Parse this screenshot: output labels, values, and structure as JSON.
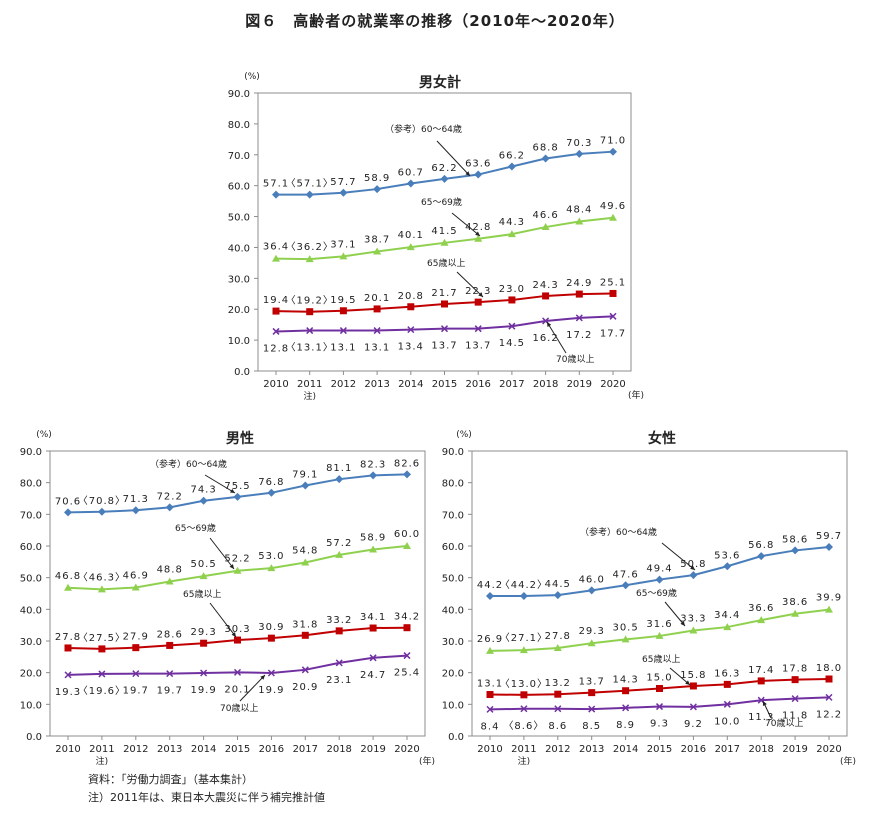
{
  "main_title": "図６　高齢者の就業率の推移（2010年～2020年）",
  "footnotes": {
    "source": "資料：「労働力調査」（基本集計）",
    "note": "注）2011年は、東日本大震災に伴う補完推計値"
  },
  "chart_data": [
    {
      "id": "total",
      "type": "line",
      "title": "男女計",
      "ylabel": "(%)",
      "xlabel": "(年)",
      "ylim": [
        0,
        90
      ],
      "yticks": [
        "0.0",
        "10.0",
        "20.0",
        "30.0",
        "40.0",
        "50.0",
        "60.0",
        "70.0",
        "80.0",
        "90.0"
      ],
      "categories": [
        "2010",
        "2011",
        "2012",
        "2013",
        "2014",
        "2015",
        "2016",
        "2017",
        "2018",
        "2019",
        "2020"
      ],
      "x_note": "注)",
      "series": [
        {
          "name": "（参考）60～64歳",
          "color": "#4a7ebb",
          "marker": "diamond",
          "values": [
            57.1,
            57.1,
            57.7,
            58.9,
            60.7,
            62.2,
            63.6,
            66.2,
            68.8,
            70.3,
            71.0
          ],
          "labels": [
            "57.1",
            "〈57.1〉",
            "57.7",
            "58.9",
            "60.7",
            "62.2",
            "63.6",
            "66.2",
            "68.8",
            "70.3",
            "71.0"
          ]
        },
        {
          "name": "65～69歳",
          "color": "#8fd14f",
          "marker": "triangle",
          "values": [
            36.4,
            36.2,
            37.1,
            38.7,
            40.1,
            41.5,
            42.8,
            44.3,
            46.6,
            48.4,
            49.6
          ],
          "labels": [
            "36.4",
            "〈36.2〉",
            "37.1",
            "38.7",
            "40.1",
            "41.5",
            "42.8",
            "44.3",
            "46.6",
            "48.4",
            "49.6"
          ]
        },
        {
          "name": "65歳以上",
          "color": "#c00000",
          "marker": "square",
          "values": [
            19.4,
            19.2,
            19.5,
            20.1,
            20.8,
            21.7,
            22.3,
            23.0,
            24.3,
            24.9,
            25.1
          ],
          "labels": [
            "19.4",
            "〈19.2〉",
            "19.5",
            "20.1",
            "20.8",
            "21.7",
            "22.3",
            "23.0",
            "24.3",
            "24.9",
            "25.1"
          ]
        },
        {
          "name": "70歳以上",
          "color": "#7030a0",
          "marker": "cross",
          "values": [
            12.8,
            13.1,
            13.1,
            13.1,
            13.4,
            13.7,
            13.7,
            14.5,
            16.2,
            17.2,
            17.7
          ],
          "labels": [
            "12.8",
            "〈13.1〉",
            "13.1",
            "13.1",
            "13.4",
            "13.7",
            "13.7",
            "14.5",
            "16.2",
            "17.2",
            "17.7"
          ]
        }
      ]
    },
    {
      "id": "male",
      "type": "line",
      "title": "男性",
      "ylabel": "(%)",
      "xlabel": "(年)",
      "ylim": [
        0,
        90
      ],
      "yticks": [
        "0.0",
        "10.0",
        "20.0",
        "30.0",
        "40.0",
        "50.0",
        "60.0",
        "70.0",
        "80.0",
        "90.0"
      ],
      "categories": [
        "2010",
        "2011",
        "2012",
        "2013",
        "2014",
        "2015",
        "2016",
        "2017",
        "2018",
        "2019",
        "2020"
      ],
      "x_note": "注)",
      "series": [
        {
          "name": "（参考）60～64歳",
          "color": "#4a7ebb",
          "marker": "diamond",
          "values": [
            70.6,
            70.8,
            71.3,
            72.2,
            74.3,
            75.5,
            76.8,
            79.1,
            81.1,
            82.3,
            82.6
          ],
          "labels": [
            "70.6",
            "〈70.8〉",
            "71.3",
            "72.2",
            "74.3",
            "75.5",
            "76.8",
            "79.1",
            "81.1",
            "82.3",
            "82.6"
          ]
        },
        {
          "name": "65～69歳",
          "color": "#8fd14f",
          "marker": "triangle",
          "values": [
            46.8,
            46.3,
            46.9,
            48.8,
            50.5,
            52.2,
            53.0,
            54.8,
            57.2,
            58.9,
            60.0
          ],
          "labels": [
            "46.8",
            "〈46.3〉",
            "46.9",
            "48.8",
            "50.5",
            "52.2",
            "53.0",
            "54.8",
            "57.2",
            "58.9",
            "60.0"
          ]
        },
        {
          "name": "65歳以上",
          "color": "#c00000",
          "marker": "square",
          "values": [
            27.8,
            27.5,
            27.9,
            28.6,
            29.3,
            30.3,
            30.9,
            31.8,
            33.2,
            34.1,
            34.2
          ],
          "labels": [
            "27.8",
            "〈27.5〉",
            "27.9",
            "28.6",
            "29.3",
            "30.3",
            "30.9",
            "31.8",
            "33.2",
            "34.1",
            "34.2"
          ]
        },
        {
          "name": "70歳以上",
          "color": "#7030a0",
          "marker": "cross",
          "values": [
            19.3,
            19.6,
            19.7,
            19.7,
            19.9,
            20.1,
            19.9,
            20.9,
            23.1,
            24.7,
            25.4
          ],
          "labels": [
            "19.3",
            "〈19.6〉",
            "19.7",
            "19.7",
            "19.9",
            "20.1",
            "19.9",
            "20.9",
            "23.1",
            "24.7",
            "25.4"
          ]
        }
      ]
    },
    {
      "id": "female",
      "type": "line",
      "title": "女性",
      "ylabel": "(%)",
      "xlabel": "(年)",
      "ylim": [
        0,
        90
      ],
      "yticks": [
        "0.0",
        "10.0",
        "20.0",
        "30.0",
        "40.0",
        "50.0",
        "60.0",
        "70.0",
        "80.0",
        "90.0"
      ],
      "categories": [
        "2010",
        "2011",
        "2012",
        "2013",
        "2014",
        "2015",
        "2016",
        "2017",
        "2018",
        "2019",
        "2020"
      ],
      "x_note": "注)",
      "series": [
        {
          "name": "（参考）60～64歳",
          "color": "#4a7ebb",
          "marker": "diamond",
          "values": [
            44.2,
            44.2,
            44.5,
            46.0,
            47.6,
            49.4,
            50.8,
            53.6,
            56.8,
            58.6,
            59.7
          ],
          "labels": [
            "44.2",
            "〈44.2〉",
            "44.5",
            "46.0",
            "47.6",
            "49.4",
            "50.8",
            "53.6",
            "56.8",
            "58.6",
            "59.7"
          ]
        },
        {
          "name": "65～69歳",
          "color": "#8fd14f",
          "marker": "triangle",
          "values": [
            26.9,
            27.1,
            27.8,
            29.3,
            30.5,
            31.6,
            33.3,
            34.4,
            36.6,
            38.6,
            39.9
          ],
          "labels": [
            "26.9",
            "〈27.1〉",
            "27.8",
            "29.3",
            "30.5",
            "31.6",
            "33.3",
            "34.4",
            "36.6",
            "38.6",
            "39.9"
          ]
        },
        {
          "name": "65歳以上",
          "color": "#c00000",
          "marker": "square",
          "values": [
            13.1,
            13.0,
            13.2,
            13.7,
            14.3,
            15.0,
            15.8,
            16.3,
            17.4,
            17.8,
            18.0
          ],
          "labels": [
            "13.1",
            "〈13.0〉",
            "13.2",
            "13.7",
            "14.3",
            "15.0",
            "15.8",
            "16.3",
            "17.4",
            "17.8",
            "18.0"
          ]
        },
        {
          "name": "70歳以上",
          "color": "#7030a0",
          "marker": "cross",
          "values": [
            8.4,
            8.6,
            8.6,
            8.5,
            8.9,
            9.3,
            9.2,
            10.0,
            11.3,
            11.8,
            12.2
          ],
          "labels": [
            "8.4",
            "〈8.6〉",
            "8.6",
            "8.5",
            "8.9",
            "9.3",
            "9.2",
            "10.0",
            "11.3",
            "11.8",
            "12.2"
          ]
        }
      ]
    }
  ]
}
